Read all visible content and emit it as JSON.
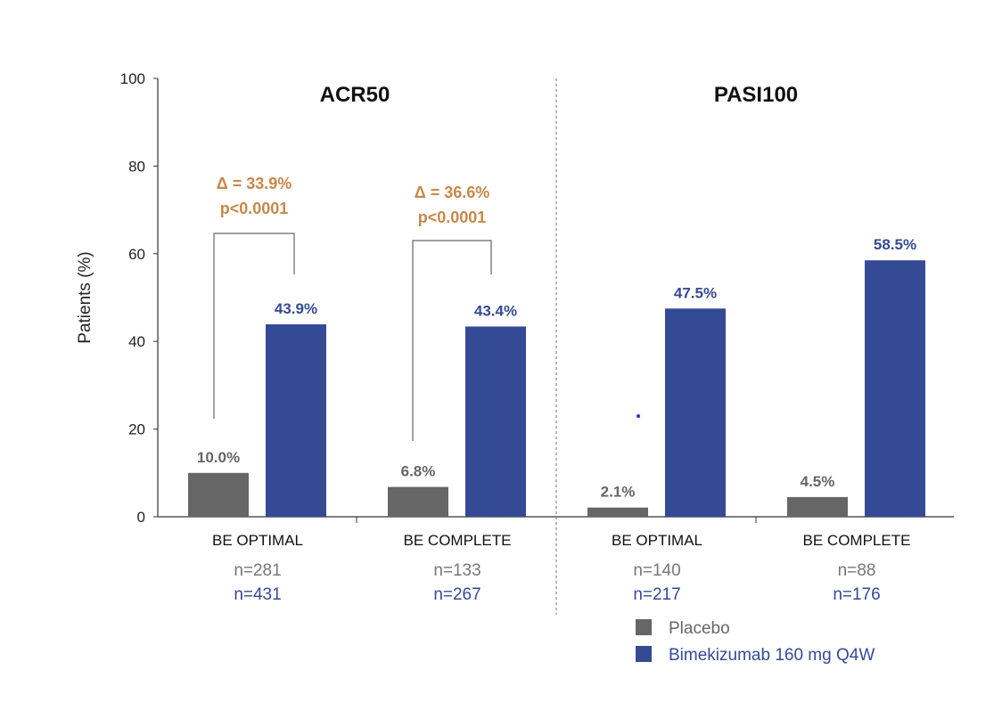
{
  "chart_data": {
    "type": "bar",
    "ylabel": "Patients (%)",
    "ylim": [
      0,
      100
    ],
    "yticks": [
      0,
      20,
      40,
      60,
      80,
      100
    ],
    "grid": false,
    "legend_placement": "bottom-right",
    "panels": [
      {
        "title": "ACR50",
        "groups": [
          {
            "category": "BE OPTIMAL",
            "n_placebo": "n=281",
            "n_bkz": "n=431",
            "values": [
              10.0,
              43.9
            ],
            "labels": [
              "10.0%",
              "43.9%"
            ],
            "delta": "Δ = 33.9%",
            "p": "p<0.0001"
          },
          {
            "category": "BE COMPLETE",
            "n_placebo": "n=133",
            "n_bkz": "n=267",
            "values": [
              6.8,
              43.4
            ],
            "labels": [
              "6.8%",
              "43.4%"
            ],
            "delta": "Δ = 36.6%",
            "p": "p<0.0001"
          }
        ]
      },
      {
        "title": "PASI100",
        "groups": [
          {
            "category": "BE OPTIMAL",
            "n_placebo": "n=140",
            "n_bkz": "n=217",
            "values": [
              2.1,
              47.5
            ],
            "labels": [
              "2.1%",
              "47.5%"
            ]
          },
          {
            "category": "BE COMPLETE",
            "n_placebo": "n=88",
            "n_bkz": "n=176",
            "values": [
              4.5,
              58.5
            ],
            "labels": [
              "4.5%",
              "58.5%"
            ]
          }
        ]
      }
    ],
    "series": [
      {
        "name": "Placebo",
        "color": "#666666"
      },
      {
        "name": "Bimekizumab 160 mg Q4W",
        "color": "#354a95"
      }
    ],
    "annotation_color": "#c8874a"
  }
}
